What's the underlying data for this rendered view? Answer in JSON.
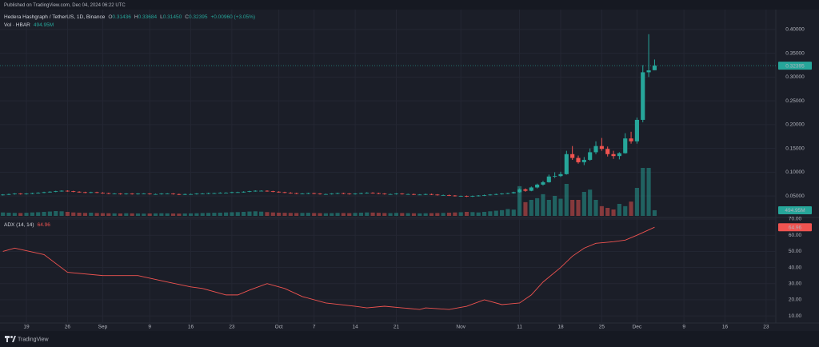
{
  "header": {
    "published": "Published on TradingView.com, Dec 04, 2024 06:22 UTC"
  },
  "footer": {
    "brand": "TradingView"
  },
  "chart_data": [
    {
      "type": "candlestick",
      "title": "Hedera Hashgraph / TetherUS, 1D, Binance",
      "quote_keys": [
        "O",
        "H",
        "L",
        "C"
      ],
      "quote_labels": [
        "0.31436",
        "0.33684",
        "0.31450",
        "0.32395"
      ],
      "change": "+0.00960 (+3.05%)",
      "up_color": "#26a69a",
      "down_color": "#ef5350",
      "candles": [
        [
          0.052,
          0.054,
          0.051,
          0.053
        ],
        [
          0.053,
          0.055,
          0.052,
          0.054
        ],
        [
          0.054,
          0.056,
          0.053,
          0.055
        ],
        [
          0.055,
          0.056,
          0.053,
          0.054
        ],
        [
          0.054,
          0.056,
          0.053,
          0.055
        ],
        [
          0.055,
          0.057,
          0.054,
          0.056
        ],
        [
          0.056,
          0.058,
          0.055,
          0.057
        ],
        [
          0.057,
          0.059,
          0.056,
          0.058
        ],
        [
          0.058,
          0.06,
          0.057,
          0.059
        ],
        [
          0.059,
          0.061,
          0.058,
          0.06
        ],
        [
          0.06,
          0.062,
          0.059,
          0.061
        ],
        [
          0.061,
          0.062,
          0.059,
          0.06
        ],
        [
          0.06,
          0.061,
          0.058,
          0.059
        ],
        [
          0.059,
          0.06,
          0.057,
          0.058
        ],
        [
          0.058,
          0.059,
          0.056,
          0.057
        ],
        [
          0.057,
          0.059,
          0.056,
          0.058
        ],
        [
          0.058,
          0.059,
          0.056,
          0.057
        ],
        [
          0.057,
          0.058,
          0.055,
          0.056
        ],
        [
          0.056,
          0.057,
          0.054,
          0.055
        ],
        [
          0.055,
          0.056,
          0.054,
          0.055
        ],
        [
          0.055,
          0.056,
          0.053,
          0.054
        ],
        [
          0.054,
          0.056,
          0.053,
          0.055
        ],
        [
          0.055,
          0.056,
          0.053,
          0.054
        ],
        [
          0.054,
          0.056,
          0.053,
          0.055
        ],
        [
          0.055,
          0.056,
          0.054,
          0.055
        ],
        [
          0.055,
          0.056,
          0.053,
          0.054
        ],
        [
          0.054,
          0.055,
          0.053,
          0.054
        ],
        [
          0.054,
          0.056,
          0.053,
          0.055
        ],
        [
          0.055,
          0.056,
          0.054,
          0.055
        ],
        [
          0.055,
          0.056,
          0.053,
          0.054
        ],
        [
          0.054,
          0.055,
          0.052,
          0.053
        ],
        [
          0.053,
          0.055,
          0.052,
          0.054
        ],
        [
          0.054,
          0.055,
          0.053,
          0.054
        ],
        [
          0.054,
          0.056,
          0.053,
          0.055
        ],
        [
          0.055,
          0.056,
          0.054,
          0.055
        ],
        [
          0.055,
          0.057,
          0.054,
          0.056
        ],
        [
          0.056,
          0.057,
          0.055,
          0.056
        ],
        [
          0.056,
          0.058,
          0.055,
          0.057
        ],
        [
          0.057,
          0.058,
          0.056,
          0.057
        ],
        [
          0.057,
          0.059,
          0.056,
          0.058
        ],
        [
          0.058,
          0.059,
          0.057,
          0.058
        ],
        [
          0.058,
          0.06,
          0.057,
          0.059
        ],
        [
          0.059,
          0.061,
          0.058,
          0.06
        ],
        [
          0.06,
          0.062,
          0.059,
          0.061
        ],
        [
          0.061,
          0.062,
          0.06,
          0.061
        ],
        [
          0.061,
          0.062,
          0.059,
          0.06
        ],
        [
          0.06,
          0.061,
          0.058,
          0.059
        ],
        [
          0.059,
          0.06,
          0.057,
          0.058
        ],
        [
          0.058,
          0.059,
          0.056,
          0.057
        ],
        [
          0.057,
          0.058,
          0.055,
          0.056
        ],
        [
          0.056,
          0.057,
          0.054,
          0.055
        ],
        [
          0.055,
          0.056,
          0.054,
          0.055
        ],
        [
          0.055,
          0.057,
          0.054,
          0.056
        ],
        [
          0.056,
          0.057,
          0.054,
          0.055
        ],
        [
          0.055,
          0.056,
          0.053,
          0.054
        ],
        [
          0.054,
          0.055,
          0.053,
          0.054
        ],
        [
          0.054,
          0.056,
          0.053,
          0.055
        ],
        [
          0.055,
          0.057,
          0.054,
          0.056
        ],
        [
          0.056,
          0.057,
          0.054,
          0.055
        ],
        [
          0.055,
          0.056,
          0.053,
          0.054
        ],
        [
          0.054,
          0.056,
          0.053,
          0.055
        ],
        [
          0.055,
          0.057,
          0.054,
          0.056
        ],
        [
          0.056,
          0.058,
          0.055,
          0.057
        ],
        [
          0.057,
          0.058,
          0.055,
          0.056
        ],
        [
          0.056,
          0.057,
          0.054,
          0.055
        ],
        [
          0.055,
          0.056,
          0.053,
          0.054
        ],
        [
          0.054,
          0.055,
          0.053,
          0.054
        ],
        [
          0.054,
          0.056,
          0.053,
          0.055
        ],
        [
          0.055,
          0.056,
          0.053,
          0.054
        ],
        [
          0.054,
          0.055,
          0.053,
          0.054
        ],
        [
          0.054,
          0.055,
          0.052,
          0.053
        ],
        [
          0.053,
          0.054,
          0.052,
          0.053
        ],
        [
          0.053,
          0.055,
          0.052,
          0.054
        ],
        [
          0.054,
          0.055,
          0.052,
          0.053
        ],
        [
          0.053,
          0.054,
          0.051,
          0.052
        ],
        [
          0.052,
          0.053,
          0.051,
          0.052
        ],
        [
          0.052,
          0.053,
          0.05,
          0.051
        ],
        [
          0.051,
          0.052,
          0.049,
          0.05
        ],
        [
          0.05,
          0.051,
          0.049,
          0.05
        ],
        [
          0.05,
          0.051,
          0.048,
          0.049
        ],
        [
          0.049,
          0.051,
          0.048,
          0.05
        ],
        [
          0.05,
          0.052,
          0.049,
          0.051
        ],
        [
          0.051,
          0.053,
          0.05,
          0.052
        ],
        [
          0.052,
          0.054,
          0.051,
          0.053
        ],
        [
          0.053,
          0.055,
          0.052,
          0.054
        ],
        [
          0.054,
          0.056,
          0.053,
          0.055
        ],
        [
          0.055,
          0.057,
          0.054,
          0.056
        ],
        [
          0.056,
          0.059,
          0.055,
          0.058
        ],
        [
          0.058,
          0.066,
          0.057,
          0.064
        ],
        [
          0.064,
          0.066,
          0.059,
          0.061
        ],
        [
          0.061,
          0.07,
          0.06,
          0.068
        ],
        [
          0.068,
          0.076,
          0.066,
          0.074
        ],
        [
          0.074,
          0.082,
          0.072,
          0.079
        ],
        [
          0.079,
          0.095,
          0.078,
          0.091
        ],
        [
          0.091,
          0.1,
          0.088,
          0.092
        ],
        [
          0.092,
          0.101,
          0.09,
          0.096
        ],
        [
          0.096,
          0.145,
          0.095,
          0.138
        ],
        [
          0.138,
          0.155,
          0.126,
          0.13
        ],
        [
          0.13,
          0.135,
          0.118,
          0.121
        ],
        [
          0.121,
          0.132,
          0.115,
          0.126
        ],
        [
          0.126,
          0.15,
          0.124,
          0.142
        ],
        [
          0.142,
          0.165,
          0.138,
          0.155
        ],
        [
          0.155,
          0.172,
          0.145,
          0.149
        ],
        [
          0.149,
          0.154,
          0.133,
          0.138
        ],
        [
          0.138,
          0.145,
          0.128,
          0.134
        ],
        [
          0.134,
          0.142,
          0.127,
          0.14
        ],
        [
          0.14,
          0.182,
          0.139,
          0.171
        ],
        [
          0.171,
          0.185,
          0.16,
          0.165
        ],
        [
          0.165,
          0.215,
          0.16,
          0.21
        ],
        [
          0.21,
          0.325,
          0.205,
          0.31
        ],
        [
          0.31,
          0.39,
          0.3,
          0.314
        ],
        [
          0.31436,
          0.33684,
          0.3145,
          0.32395
        ]
      ],
      "volume": {
        "name": "Vol · HBAR",
        "lim": [
          0,
          7000
        ],
        "value_label": "494.95M",
        "values": [
          300,
          280,
          260,
          250,
          270,
          300,
          320,
          350,
          380,
          420,
          400,
          350,
          300,
          280,
          260,
          280,
          250,
          240,
          230,
          220,
          210,
          230,
          220,
          210,
          200,
          210,
          220,
          230,
          220,
          210,
          200,
          210,
          220,
          230,
          250,
          260,
          270,
          280,
          300,
          320,
          330,
          350,
          380,
          400,
          370,
          330,
          300,
          280,
          270,
          260,
          250,
          260,
          270,
          250,
          240,
          230,
          240,
          260,
          250,
          240,
          260,
          280,
          300,
          290,
          270,
          250,
          240,
          260,
          250,
          240,
          230,
          220,
          230,
          240,
          250,
          260,
          280,
          300,
          320,
          350,
          330,
          300,
          350,
          400,
          450,
          500,
          600,
          550,
          2600,
          1200,
          1400,
          1550,
          1900,
          1400,
          1750,
          1500,
          2800,
          1400,
          1400,
          2100,
          2300,
          1400,
          850,
          700,
          560,
          1050,
          850,
          1250,
          2450,
          4200,
          4200,
          494.95
        ]
      },
      "xlim": [
        -0.5,
        131.65
      ],
      "xticks": [
        {
          "value": 4,
          "label": "19"
        },
        {
          "value": 11,
          "label": "26"
        },
        {
          "value": 17,
          "label": "Sep"
        },
        {
          "value": 25,
          "label": "9"
        },
        {
          "value": 32,
          "label": "16"
        },
        {
          "value": 39,
          "label": "23"
        },
        {
          "value": 47,
          "label": "Oct"
        },
        {
          "value": 53,
          "label": "7"
        },
        {
          "value": 60,
          "label": "14"
        },
        {
          "value": 67,
          "label": "21"
        },
        {
          "value": 78,
          "label": "Nov"
        },
        {
          "value": 88,
          "label": "11"
        },
        {
          "value": 95,
          "label": "18"
        },
        {
          "value": 102,
          "label": "25"
        },
        {
          "value": 108,
          "label": "Dec"
        },
        {
          "value": 116,
          "label": "9"
        },
        {
          "value": 123,
          "label": "16"
        },
        {
          "value": 130,
          "label": "23"
        }
      ],
      "ylim": [
        0.0083,
        0.4417
      ],
      "yticks": [
        {
          "value": 0.05,
          "label": "0.05000"
        },
        {
          "value": 0.1,
          "label": "0.10000"
        },
        {
          "value": 0.15,
          "label": "0.15000"
        },
        {
          "value": 0.2,
          "label": "0.20000"
        },
        {
          "value": 0.25,
          "label": "0.25000"
        },
        {
          "value": 0.3,
          "label": "0.30000"
        },
        {
          "value": 0.35,
          "label": "0.35000"
        },
        {
          "value": 0.4,
          "label": "0.40000"
        }
      ],
      "grid": true
    },
    {
      "type": "line",
      "title": "ADX (14, 14)",
      "series": [
        {
          "name": "ADX",
          "color": "#ef5350",
          "x": [
            0,
            2,
            7,
            11,
            17,
            23,
            28,
            32,
            34,
            38,
            40,
            42,
            45,
            48,
            51,
            55,
            60,
            62,
            65,
            68,
            71,
            72,
            76,
            79,
            82,
            83,
            85,
            88,
            90,
            92,
            95,
            97,
            99,
            101,
            104,
            106,
            108,
            111
          ],
          "values": [
            50,
            52,
            48,
            37,
            35,
            35,
            31,
            28,
            27,
            23,
            23,
            26,
            30,
            27,
            22,
            18,
            16,
            15,
            16,
            15,
            14,
            15,
            14,
            16,
            20,
            19,
            17,
            18,
            23,
            31,
            40,
            47,
            52,
            55,
            56,
            57,
            60,
            64.96
          ]
        }
      ],
      "xlim": [
        -0.5,
        131.65
      ],
      "ylim": [
        5.6,
        71
      ],
      "yticks": [
        {
          "value": 10,
          "label": "10.00"
        },
        {
          "value": 20,
          "label": "20.00"
        },
        {
          "value": 30,
          "label": "30.00"
        },
        {
          "value": 40,
          "label": "40.00"
        },
        {
          "value": 50,
          "label": "50.00"
        },
        {
          "value": 60,
          "label": "60.00"
        },
        {
          "value": 70,
          "label": "70.00"
        }
      ],
      "grid": true
    }
  ]
}
